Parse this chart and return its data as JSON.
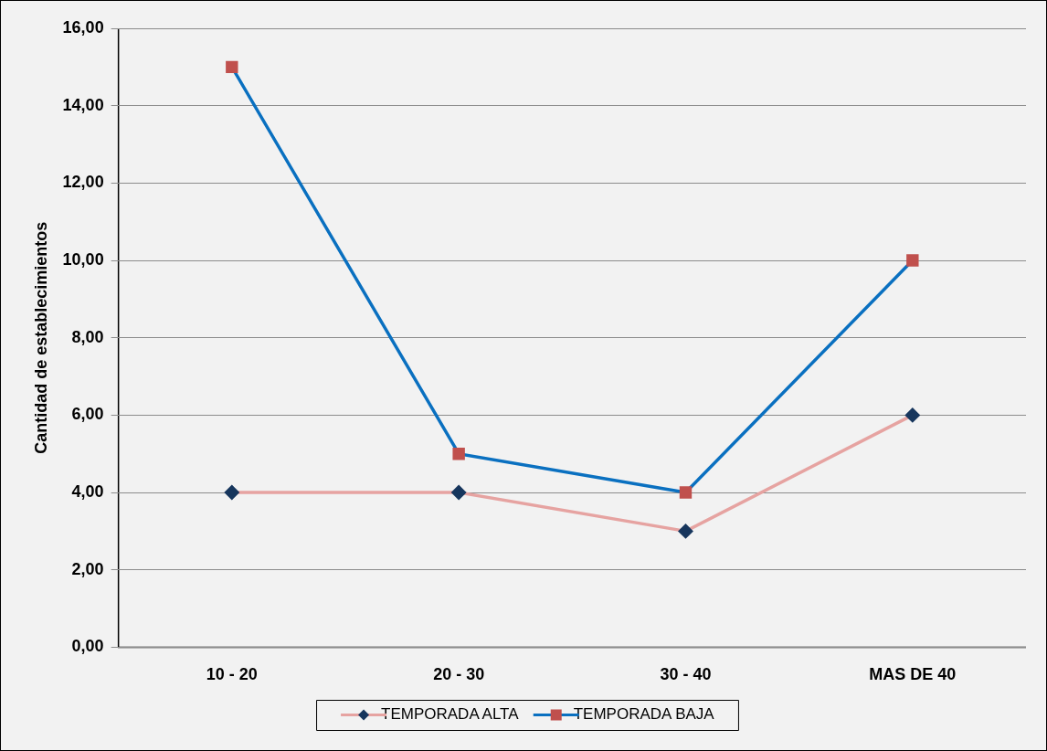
{
  "chart_data": {
    "type": "line",
    "ylabel": "Cantidad de establecimientos",
    "categories": [
      "10 - 20",
      "20 - 30",
      "30 - 40",
      "MAS DE 40"
    ],
    "series": [
      {
        "name": "TEMPORADA ALTA",
        "color": "#e6a3a1",
        "values": [
          4,
          4,
          3,
          6
        ],
        "marker": "diamond"
      },
      {
        "name": "TEMPORADA BAJA",
        "color": "#0a70c0",
        "values": [
          15,
          5,
          4,
          10
        ],
        "marker": "square"
      }
    ],
    "ylim": [
      0,
      16
    ],
    "yticks": [
      {
        "value": 0,
        "label": "0,00"
      },
      {
        "value": 2,
        "label": "2,00"
      },
      {
        "value": 4,
        "label": "4,00"
      },
      {
        "value": 6,
        "label": "6,00"
      },
      {
        "value": 8,
        "label": "8,00"
      },
      {
        "value": 10,
        "label": "10,00"
      },
      {
        "value": 12,
        "label": "12,00"
      },
      {
        "value": 14,
        "label": "14,00"
      },
      {
        "value": 16,
        "label": "16,00"
      }
    ],
    "grid": "y",
    "legend": "bottom"
  }
}
